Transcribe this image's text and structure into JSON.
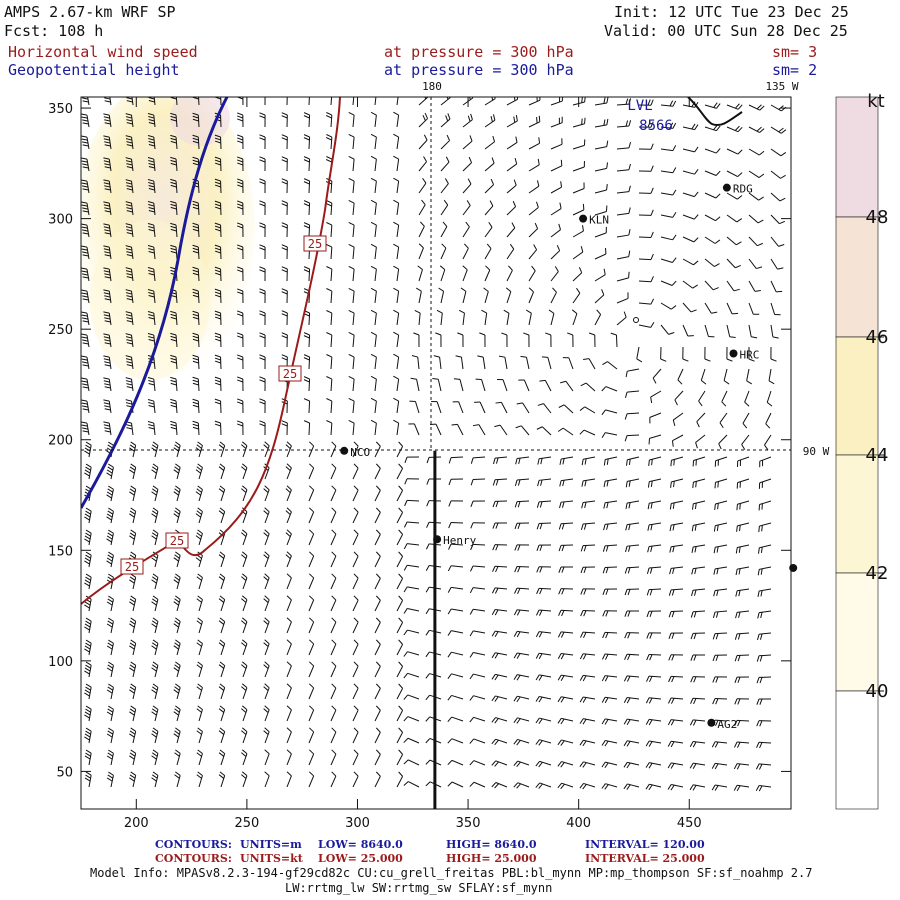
{
  "header": {
    "line1_left": "AMPS 2.67-km WRF SP",
    "line1_right": "Init: 12 UTC Tue 23 Dec 25",
    "line2_left": "Fcst: 108 h",
    "line2_right": "Valid: 00 UTC Sun 28 Dec 25",
    "line3_field": "Horizontal wind speed",
    "line3_level": "at pressure = 300 hPa",
    "line3_sm": "sm= 3",
    "line4_field": "Geopotential height",
    "line4_level": "at pressure = 300 hPa",
    "line4_sm": "sm= 2"
  },
  "map_labels": {
    "lon_180": "180",
    "lon_135w": "135 W",
    "lon_90w": "90 W",
    "high_label": "LVL",
    "height_value": "8566",
    "contour_label": "25"
  },
  "stations": [
    {
      "name": "RDG",
      "x": 467,
      "y": 314
    },
    {
      "name": "KLN",
      "x": 402,
      "y": 300
    },
    {
      "name": "HRC",
      "x": 470,
      "y": 239
    },
    {
      "name": "NCO",
      "x": 294,
      "y": 195
    },
    {
      "name": "Henry",
      "x": 336,
      "y": 155
    },
    {
      "name": "AG2",
      "x": 460,
      "y": 72
    },
    {
      "name": "",
      "x": 497,
      "y": 142
    }
  ],
  "colorbar": {
    "unit": "kt",
    "labels": [
      "48",
      "46",
      "44",
      "42",
      "40"
    ]
  },
  "chart_data": {
    "type": "map",
    "title": "Horizontal wind speed / Geopotential height at 300 hPa",
    "x_ticks": [
      "200",
      "250",
      "300",
      "350",
      "400",
      "450"
    ],
    "y_ticks": [
      "350",
      "300",
      "250",
      "200",
      "150",
      "100",
      "50"
    ],
    "xlim": [
      175,
      496
    ],
    "ylim": [
      33,
      355
    ],
    "shading_levels_kt": [
      40,
      42,
      44,
      46,
      48
    ],
    "shading_colors": [
      "#fffbe8",
      "#fdf6d4",
      "#fbf0c2",
      "#f5e4d6",
      "#efdbe2"
    ],
    "contours": [
      {
        "field": "geopotential height",
        "units": "m",
        "low": 8640.0,
        "high": 8640.0,
        "interval": 120.0,
        "color": "#1a1a9a"
      },
      {
        "field": "wind speed",
        "units": "kt",
        "low": 25.0,
        "high": 25.0,
        "interval": 25.0,
        "color": "#9b1b1b"
      }
    ],
    "cross_section": {
      "x": 335,
      "y_from": 33,
      "y_to": 195
    }
  },
  "footer": {
    "c1_label": "CONTOURS:",
    "c1_units": "UNITS=m",
    "c1_low": "LOW= 8640.0",
    "c1_high": "HIGH= 8640.0",
    "c1_interval": "INTERVAL= 120.00",
    "c2_label": "CONTOURS:",
    "c2_units": "UNITS=kt",
    "c2_low": "LOW= 25.000",
    "c2_high": "HIGH= 25.000",
    "c2_interval": "INTERVAL= 25.000",
    "model_info": "Model Info: MPASv8.2.3-194-gf29cd82c CU:cu_grell_freitas PBL:bl_mynn MP:mp_thompson SF:sf_noahmp 2.7",
    "model_info2": "LW:rrtmg_lw SW:rrtmg_sw SFLAY:sf_mynn"
  }
}
